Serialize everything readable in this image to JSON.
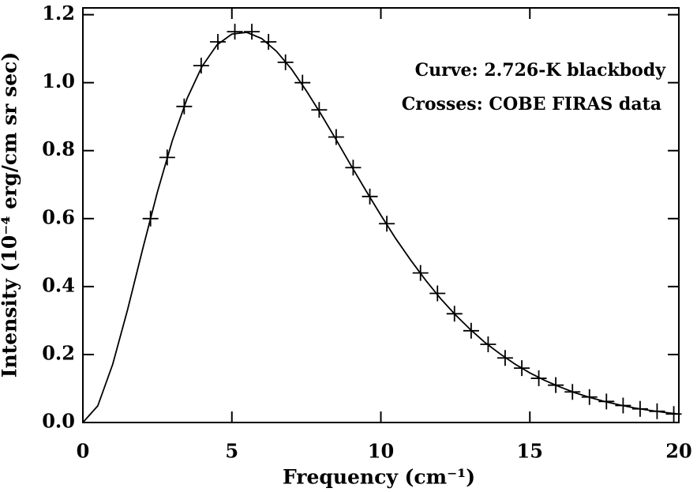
{
  "chart_data": {
    "type": "line",
    "x_label": "Frequency (cm⁻¹)",
    "y_label": "Intensity (10⁻⁴ erg/cm sr sec)",
    "annotations": [
      "Curve: 2.726-K blackbody",
      "Crosses: COBE FIRAS data"
    ],
    "xlim": [
      0,
      20
    ],
    "ylim": [
      0,
      1.22
    ],
    "xticks": [
      0,
      5,
      10,
      15,
      20
    ],
    "yticks": [
      {
        "value": 0,
        "label": "0.0"
      },
      0.2,
      0.4,
      0.6,
      0.8,
      {
        "value": 1,
        "label": "1.0"
      },
      1.2
    ],
    "series": [
      {
        "name": "Curve: 2.726-K blackbody",
        "kind": "line",
        "color": "#000000",
        "x": [
          0,
          0.5,
          1,
          1.5,
          2,
          2.5,
          3,
          3.5,
          4,
          4.5,
          5,
          5.5,
          6,
          6.5,
          7,
          7.5,
          8,
          8.5,
          9,
          9.5,
          10,
          10.5,
          11,
          11.5,
          12,
          12.5,
          13,
          13.5,
          14,
          14.5,
          15,
          15.5,
          16,
          16.5,
          17,
          17.5,
          18,
          18.5,
          19,
          19.5,
          20
        ],
        "values": [
          0,
          0.049,
          0.171,
          0.332,
          0.508,
          0.678,
          0.829,
          0.954,
          1.048,
          1.111,
          1.143,
          1.148,
          1.13,
          1.092,
          1.04,
          0.976,
          0.906,
          0.832,
          0.756,
          0.682,
          0.61,
          0.541,
          0.478,
          0.419,
          0.365,
          0.317,
          0.274,
          0.235,
          0.202,
          0.172,
          0.146,
          0.124,
          0.105,
          0.088,
          0.074,
          0.062,
          0.052,
          0.043,
          0.036,
          0.03,
          0.025
        ]
      },
      {
        "name": "Crosses: COBE FIRAS data",
        "kind": "cross",
        "color": "#000000",
        "x": [
          2.27,
          2.83,
          3.4,
          3.97,
          4.53,
          5.1,
          5.67,
          6.23,
          6.8,
          7.37,
          7.93,
          8.5,
          9.07,
          9.63,
          10.2,
          11.33,
          11.9,
          12.47,
          13.03,
          13.6,
          14.17,
          14.73,
          15.3,
          15.87,
          16.43,
          17.0,
          17.57,
          18.13,
          18.7,
          19.27,
          19.83
        ],
        "values": [
          0.6,
          0.78,
          0.93,
          1.05,
          1.12,
          1.15,
          1.15,
          1.12,
          1.06,
          1.0,
          0.92,
          0.84,
          0.75,
          0.665,
          0.585,
          0.44,
          0.38,
          0.32,
          0.27,
          0.23,
          0.19,
          0.16,
          0.13,
          0.11,
          0.09,
          0.075,
          0.062,
          0.05,
          0.04,
          0.033,
          0.025
        ]
      }
    ]
  }
}
